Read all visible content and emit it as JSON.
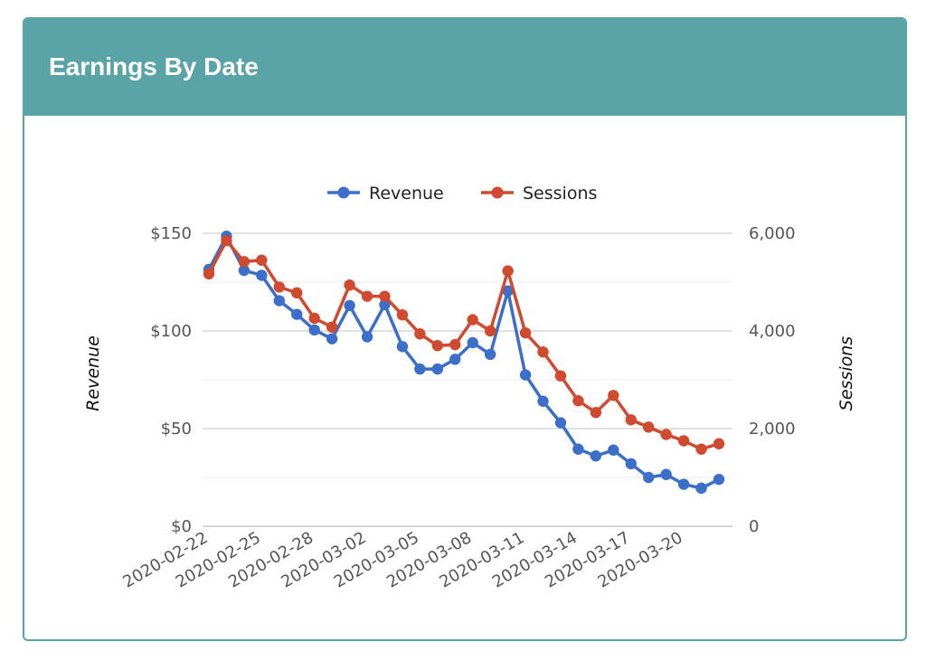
{
  "card": {
    "title": "Earnings By Date"
  },
  "colors": {
    "header": "#5aa4a8",
    "revenue": "#3b6fc9",
    "sessions": "#d04a2f",
    "grid": "#d6d6d6"
  },
  "chart_data": {
    "type": "line",
    "title": "",
    "legend": "top",
    "grid": true,
    "x": [
      "2020-02-22",
      "2020-02-23",
      "2020-02-24",
      "2020-02-25",
      "2020-02-26",
      "2020-02-27",
      "2020-02-28",
      "2020-02-29",
      "2020-03-01",
      "2020-03-02",
      "2020-03-03",
      "2020-03-04",
      "2020-03-05",
      "2020-03-06",
      "2020-03-07",
      "2020-03-08",
      "2020-03-09",
      "2020-03-10",
      "2020-03-11",
      "2020-03-12",
      "2020-03-13",
      "2020-03-14",
      "2020-03-15",
      "2020-03-16",
      "2020-03-17",
      "2020-03-18",
      "2020-03-19",
      "2020-03-20",
      "2020-03-21",
      "2020-03-22"
    ],
    "xticks": [
      "2020-02-22",
      "2020-02-25",
      "2020-02-28",
      "2020-03-02",
      "2020-03-05",
      "2020-03-08",
      "2020-03-11",
      "2020-03-14",
      "2020-03-17",
      "2020-03-20"
    ],
    "y_left": {
      "label": "Revenue",
      "ylim": [
        0,
        150
      ],
      "ticks": [
        0,
        50,
        100,
        150
      ],
      "tick_labels": [
        "$0",
        "$50",
        "$100",
        "$150"
      ]
    },
    "y_right": {
      "label": "Sessions",
      "ylim": [
        0,
        6000
      ],
      "ticks": [
        0,
        2000,
        4000,
        6000
      ],
      "tick_labels": [
        "0",
        "2,000",
        "4,000",
        "6,000"
      ]
    },
    "series": [
      {
        "name": "Revenue",
        "axis": "left",
        "values": [
          131.5,
          148.5,
          131,
          128.5,
          115.5,
          108.5,
          100.5,
          96,
          113,
          97,
          113.5,
          92,
          80.5,
          80.5,
          85.5,
          94,
          88,
          120.5,
          77.5,
          64,
          53,
          39.5,
          36,
          39,
          32,
          25,
          26.5,
          21.5,
          19.5,
          24
        ]
      },
      {
        "name": "Sessions",
        "axis": "right",
        "values": [
          5170,
          5850,
          5420,
          5450,
          4900,
          4780,
          4260,
          4080,
          4940,
          4710,
          4710,
          4330,
          3940,
          3700,
          3720,
          4230,
          4000,
          5230,
          3960,
          3570,
          3080,
          2570,
          2330,
          2680,
          2180,
          2030,
          1880,
          1750,
          1580,
          1690
        ]
      }
    ]
  }
}
